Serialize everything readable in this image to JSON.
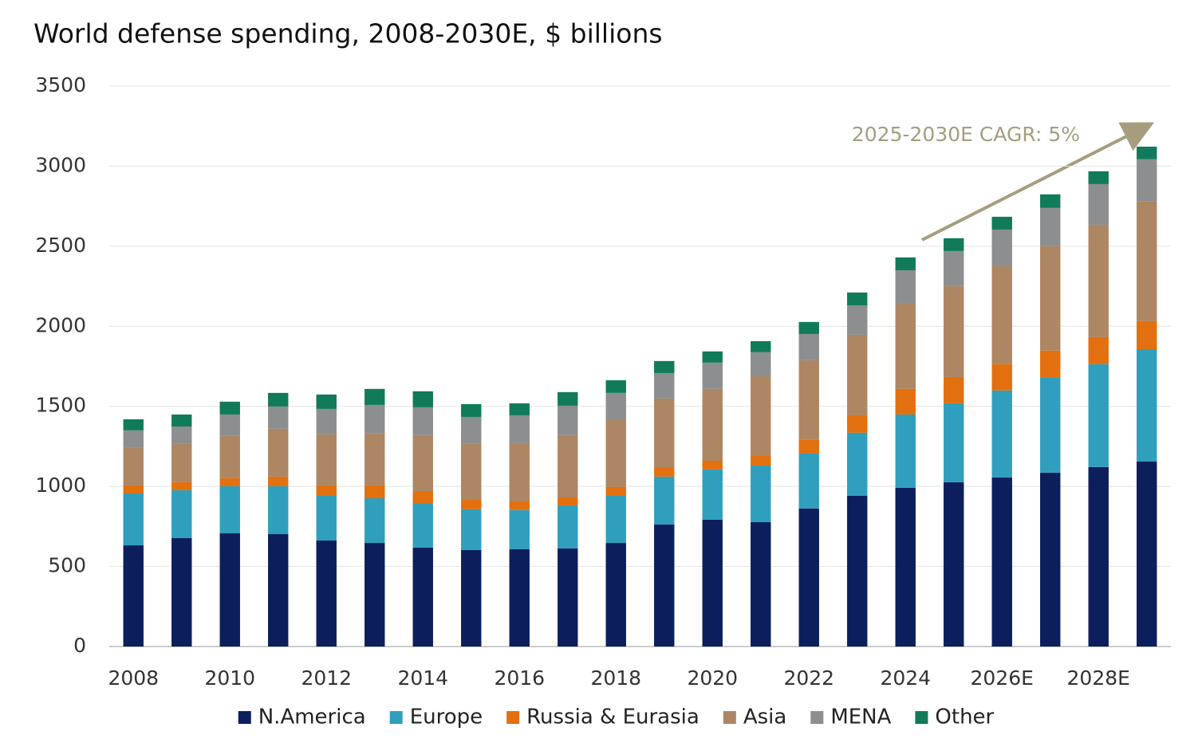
{
  "chart_data": {
    "type": "stacked-bar",
    "title": "World defense spending, 2008-2030E, $ billions",
    "annotation": "2025-2030E CAGR: 5%",
    "categories": [
      "2008",
      null,
      "2010",
      null,
      "2012",
      null,
      "2014",
      null,
      "2016",
      null,
      "2018",
      null,
      "2020",
      null,
      "2022",
      null,
      "2024",
      null,
      "2026E",
      null,
      "2028E",
      null
    ],
    "series": [
      {
        "name": "N.America",
        "color": "#0c1f5c",
        "values": [
          632,
          677,
          707,
          702,
          662,
          647,
          618,
          603,
          608,
          613,
          647,
          762,
          792,
          777,
          862,
          941,
          991,
          1026,
          1056,
          1086,
          1121,
          1155
        ]
      },
      {
        "name": "Europe",
        "color": "#2f9fbd",
        "values": [
          324,
          299,
          294,
          299,
          279,
          279,
          278,
          254,
          244,
          268,
          294,
          299,
          314,
          353,
          343,
          394,
          458,
          493,
          543,
          592,
          642,
          702
        ]
      },
      {
        "name": "Russia & Eurasia",
        "color": "#e3700e",
        "values": [
          50,
          50,
          50,
          60,
          65,
          80,
          75,
          59,
          54,
          50,
          55,
          59,
          54,
          60,
          85,
          109,
          160,
          164,
          164,
          170,
          169,
          175
        ]
      },
      {
        "name": "Asia",
        "color": "#ad8663",
        "values": [
          234,
          239,
          264,
          299,
          319,
          324,
          349,
          349,
          364,
          389,
          418,
          429,
          449,
          498,
          498,
          503,
          537,
          568,
          612,
          652,
          702,
          747
        ]
      },
      {
        "name": "MENA",
        "color": "#8d8e90",
        "values": [
          110,
          109,
          134,
          139,
          159,
          179,
          174,
          169,
          174,
          184,
          170,
          159,
          164,
          150,
          164,
          184,
          204,
          219,
          229,
          239,
          254,
          264
        ]
      },
      {
        "name": "Other",
        "color": "#117a5a",
        "values": [
          69,
          75,
          80,
          85,
          90,
          100,
          100,
          80,
          75,
          85,
          79,
          75,
          70,
          69,
          75,
          80,
          80,
          80,
          80,
          85,
          80,
          79
        ]
      }
    ],
    "ylim": [
      0,
      3500
    ],
    "yticks": [
      0,
      500,
      1000,
      1500,
      2000,
      2500,
      3000,
      3500
    ],
    "grid": true
  }
}
